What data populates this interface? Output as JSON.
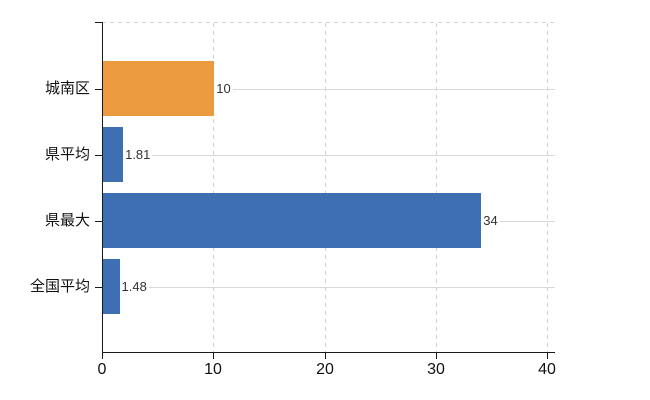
{
  "chart_data": {
    "type": "bar",
    "orientation": "horizontal",
    "title": "",
    "categories": [
      "城南区",
      "県平均",
      "県最大",
      "全国平均"
    ],
    "values": [
      10,
      1.81,
      34,
      1.48
    ],
    "value_labels": [
      "10",
      "1.81",
      "34",
      "1.48"
    ],
    "bar_colors": [
      "#ec9a40",
      "#3d6fb2",
      "#3d6fb2",
      "#3d6fb2"
    ],
    "x_ticks": [
      "0",
      "10",
      "20",
      "30",
      "40"
    ],
    "x_tick_values": [
      0,
      10,
      20,
      30,
      40
    ],
    "xlim": [
      0,
      40.7
    ],
    "grid": true,
    "legend": "none",
    "background": "#ffffff"
  },
  "colors": {
    "bar_orange": "#ec9a40",
    "bar_blue": "#3d6fb2",
    "gridline": "#d2d2d2",
    "category_gridline": "#d8d8d8",
    "axis": "#1a1a1a",
    "value_label_text": "#333333",
    "axis_label_text": "#111111",
    "background": "#ffffff"
  }
}
